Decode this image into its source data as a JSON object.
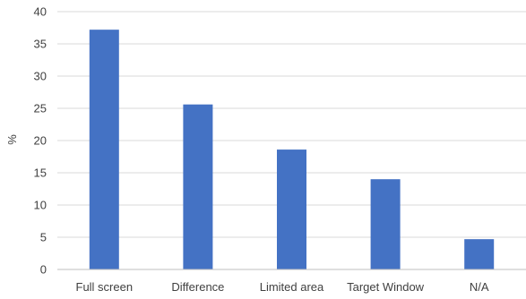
{
  "chart_data": {
    "type": "bar",
    "title": "",
    "xlabel": "",
    "ylabel": "%",
    "categories": [
      "Full screen",
      "Difference",
      "Limited area",
      "Target Window",
      "N/A"
    ],
    "values": [
      37.2,
      25.6,
      18.6,
      14.0,
      4.7
    ],
    "ylim": [
      0,
      40
    ],
    "yticks": [
      0,
      5,
      10,
      15,
      20,
      25,
      30,
      35,
      40
    ],
    "grid": true,
    "legend": "none",
    "colors": {
      "bar": "#4472C4",
      "grid": "#D9D9D9",
      "axis": "#BFBFBF",
      "text": "#404040"
    }
  }
}
